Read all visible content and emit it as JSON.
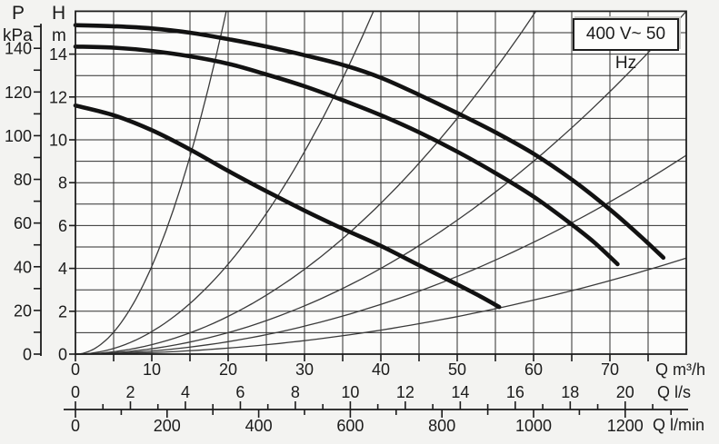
{
  "chart_data": {
    "type": "line",
    "voltage_label": "400 V~ 50 Hz",
    "y_axis_pressure": {
      "name": "P",
      "unit": "kPa",
      "min": 0,
      "max": 150,
      "tick_step": 10,
      "label_step": 20,
      "kpa_per_m": 9.81,
      "tick_labels": [
        "0",
        "20",
        "40",
        "60",
        "80",
        "100",
        "120",
        "140"
      ]
    },
    "y_axis_head": {
      "name": "H",
      "unit": "m",
      "min": 0,
      "max": 16,
      "grid_step": 1,
      "label_step": 2,
      "tick_labels": [
        "0",
        "2",
        "4",
        "6",
        "8",
        "10",
        "12",
        "14"
      ]
    },
    "x_axis_flow_m3h": {
      "unit_label": "Q m³/h",
      "min": 0,
      "max": 80,
      "tick_step": 5,
      "label_step": 10,
      "tick_labels": [
        "0",
        "10",
        "20",
        "30",
        "40",
        "50",
        "60",
        "70"
      ]
    },
    "x_axis_flow_ls": {
      "unit_label": "Q l/s",
      "min": 0,
      "max": 21,
      "tick_step": 1,
      "label_step": 2,
      "m3h_per_unit": 3.6,
      "tick_labels": [
        "0",
        "2",
        "4",
        "6",
        "8",
        "10",
        "12",
        "14",
        "16",
        "18",
        "20"
      ]
    },
    "x_axis_flow_lmin": {
      "unit_label": "Q l/min",
      "min": 0,
      "max": 1300,
      "tick_step": 100,
      "label_step": 200,
      "m3h_per_unit": 0.06,
      "tick_labels": [
        "0",
        "200",
        "400",
        "600",
        "800",
        "1000",
        "1200"
      ]
    },
    "pump_curves": [
      {
        "points": [
          [
            0,
            15.35
          ],
          [
            5,
            15.3
          ],
          [
            10,
            15.2
          ],
          [
            15,
            15.0
          ],
          [
            20,
            14.7
          ],
          [
            25,
            14.35
          ],
          [
            30,
            13.95
          ],
          [
            35,
            13.5
          ],
          [
            40,
            12.9
          ],
          [
            45,
            12.1
          ],
          [
            50,
            11.25
          ],
          [
            55,
            10.35
          ],
          [
            60,
            9.35
          ],
          [
            65,
            8.15
          ],
          [
            70,
            6.75
          ],
          [
            74,
            5.5
          ],
          [
            77,
            4.5
          ]
        ]
      },
      {
        "points": [
          [
            0,
            14.35
          ],
          [
            5,
            14.3
          ],
          [
            10,
            14.15
          ],
          [
            15,
            13.9
          ],
          [
            20,
            13.55
          ],
          [
            25,
            13.05
          ],
          [
            30,
            12.5
          ],
          [
            35,
            11.85
          ],
          [
            40,
            11.15
          ],
          [
            45,
            10.35
          ],
          [
            50,
            9.45
          ],
          [
            55,
            8.45
          ],
          [
            60,
            7.35
          ],
          [
            65,
            6.05
          ],
          [
            68,
            5.2
          ],
          [
            71,
            4.2
          ]
        ]
      },
      {
        "points": [
          [
            0,
            11.6
          ],
          [
            5,
            11.15
          ],
          [
            10,
            10.45
          ],
          [
            15,
            9.55
          ],
          [
            20,
            8.55
          ],
          [
            25,
            7.6
          ],
          [
            30,
            6.7
          ],
          [
            35,
            5.85
          ],
          [
            40,
            5.05
          ],
          [
            45,
            4.15
          ],
          [
            50,
            3.25
          ],
          [
            53,
            2.7
          ],
          [
            55.5,
            2.2
          ]
        ]
      }
    ],
    "system_curves": [
      {
        "k": 0.041
      },
      {
        "k": 0.0105
      },
      {
        "k": 0.0044
      },
      {
        "k": 0.0025
      },
      {
        "k": 0.00145
      },
      {
        "k": 0.0007
      }
    ],
    "colors": {
      "ink": "#1b1b1b",
      "grid": "#2e2e2e",
      "frame": "#1f1f1f",
      "pump_curve": "#121212",
      "system_curve": "#3a3a3a",
      "plot_bg": "#fcfcfb",
      "page_bg": "#f3f3f1",
      "box_bg": "#fdfdfc"
    }
  }
}
